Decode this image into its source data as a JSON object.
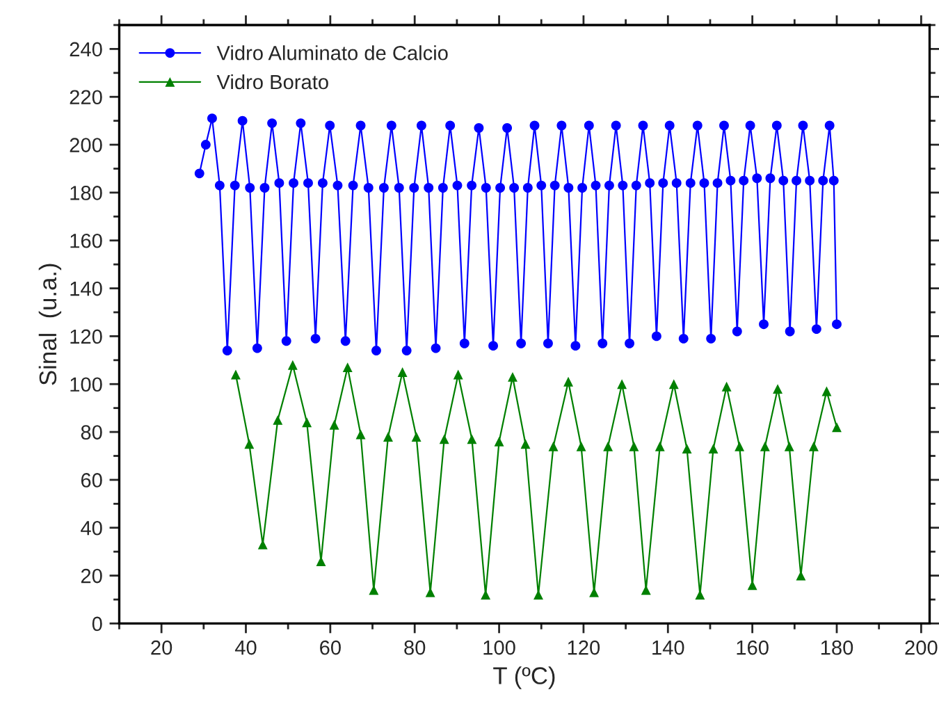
{
  "chart_data": {
    "type": "line",
    "xlabel": "T (ºC)",
    "ylabel": "Sinal  (u.a.)",
    "xlim": [
      10,
      202
    ],
    "ylim": [
      0,
      250
    ],
    "xticks": [
      20,
      40,
      60,
      80,
      100,
      120,
      140,
      160,
      180,
      200
    ],
    "yticks": [
      0,
      20,
      40,
      60,
      80,
      100,
      120,
      140,
      160,
      180,
      200,
      220,
      240
    ],
    "legend": "top left",
    "grid": false,
    "series": [
      {
        "name": "Vidro Aluminato de Calcio",
        "color": "#0000ff",
        "marker": "circle",
        "line_style": "solid",
        "x": [
          29,
          30.5,
          32.0,
          33.8,
          35.6,
          37.4,
          39.2,
          40.95,
          42.7,
          44.45,
          46.2,
          47.9,
          49.6,
          51.3,
          53.0,
          54.75,
          56.5,
          58.2,
          59.9,
          61.75,
          63.6,
          65.4,
          67.2,
          69.05,
          70.9,
          72.7,
          74.5,
          76.3,
          78.1,
          79.85,
          81.6,
          83.3,
          85.0,
          86.7,
          88.4,
          90.1,
          91.8,
          93.5,
          95.2,
          96.9,
          98.6,
          100.25,
          101.9,
          103.55,
          105.2,
          106.8,
          108.4,
          110.0,
          111.6,
          113.2,
          114.8,
          116.45,
          118.1,
          119.7,
          121.3,
          122.9,
          124.5,
          126.1,
          127.7,
          129.3,
          130.9,
          132.5,
          134.1,
          135.7,
          137.3,
          138.85,
          140.4,
          142.05,
          143.7,
          145.35,
          147.0,
          148.6,
          150.2,
          151.75,
          153.3,
          154.85,
          156.4,
          157.95,
          159.5,
          161.1,
          162.7,
          164.25,
          165.8,
          167.35,
          168.9,
          170.45,
          172.0,
          173.6,
          175.2,
          176.75,
          178.3,
          179.3,
          180.0
        ],
        "values": [
          188,
          200,
          211,
          183,
          114,
          183,
          210,
          182,
          115,
          182,
          209,
          184,
          118,
          184,
          209,
          184,
          119,
          184,
          208,
          183,
          118,
          183,
          208,
          182,
          114,
          182,
          208,
          182,
          114,
          182,
          208,
          182,
          115,
          182,
          208,
          183,
          117,
          183,
          207,
          182,
          116,
          182,
          207,
          182,
          117,
          182,
          208,
          183,
          117,
          183,
          208,
          182,
          116,
          182,
          208,
          183,
          117,
          183,
          208,
          183,
          117,
          183,
          208,
          184,
          120,
          184,
          208,
          184,
          119,
          184,
          208,
          184,
          119,
          184,
          208,
          185,
          122,
          185,
          208,
          186,
          125,
          186,
          208,
          185,
          122,
          185,
          208,
          185,
          123,
          185,
          208,
          185,
          125
        ]
      },
      {
        "name": "Vidro Borato",
        "color": "#008000",
        "marker": "triangle",
        "line_style": "solid",
        "x": [
          37.6,
          40.8,
          44.0,
          47.55,
          51.1,
          54.45,
          57.8,
          60.95,
          64.1,
          67.2,
          70.3,
          73.7,
          77.1,
          80.4,
          83.7,
          87.0,
          90.3,
          93.55,
          96.8,
          100.0,
          103.2,
          106.25,
          109.3,
          112.85,
          116.4,
          119.45,
          122.5,
          125.8,
          129.1,
          131.95,
          134.8,
          138.1,
          141.4,
          144.5,
          147.6,
          150.75,
          153.9,
          156.95,
          160.0,
          163.0,
          166.0,
          168.75,
          171.5,
          174.55,
          177.6,
          180.0
        ],
        "values": [
          104,
          75,
          33,
          85,
          108,
          84,
          26,
          83,
          107,
          79,
          14,
          78,
          105,
          78,
          13,
          77,
          104,
          77,
          12,
          76,
          103,
          75,
          12,
          74,
          101,
          74,
          13,
          74,
          100,
          74,
          14,
          74,
          100,
          73,
          12,
          73,
          99,
          74,
          16,
          74,
          98,
          74,
          20,
          74,
          97,
          82
        ]
      }
    ]
  }
}
